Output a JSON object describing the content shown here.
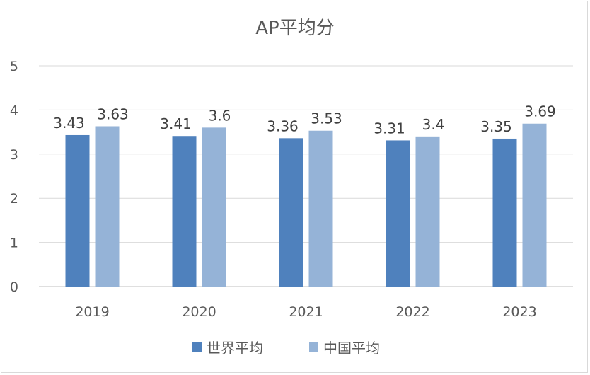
{
  "chart_data": {
    "type": "bar",
    "title": "AP平均分",
    "categories": [
      "2019",
      "2020",
      "2021",
      "2022",
      "2023"
    ],
    "series": [
      {
        "name": "世界平均",
        "values": [
          3.43,
          3.41,
          3.36,
          3.31,
          3.35
        ],
        "color": "#4f81bd"
      },
      {
        "name": "中国平均",
        "values": [
          3.63,
          3.6,
          3.53,
          3.4,
          3.69
        ],
        "color": "#95b3d7"
      }
    ],
    "data_labels": [
      [
        "3.43",
        "3.41",
        "3.36",
        "3.31",
        "3.35"
      ],
      [
        "3.63",
        "3.6",
        "3.53",
        "3.4",
        "3.69"
      ]
    ],
    "ylim": [
      0,
      5
    ],
    "yticks": [
      "0",
      "1",
      "2",
      "3",
      "4",
      "5"
    ],
    "grid": true,
    "legend_position": "bottom"
  }
}
